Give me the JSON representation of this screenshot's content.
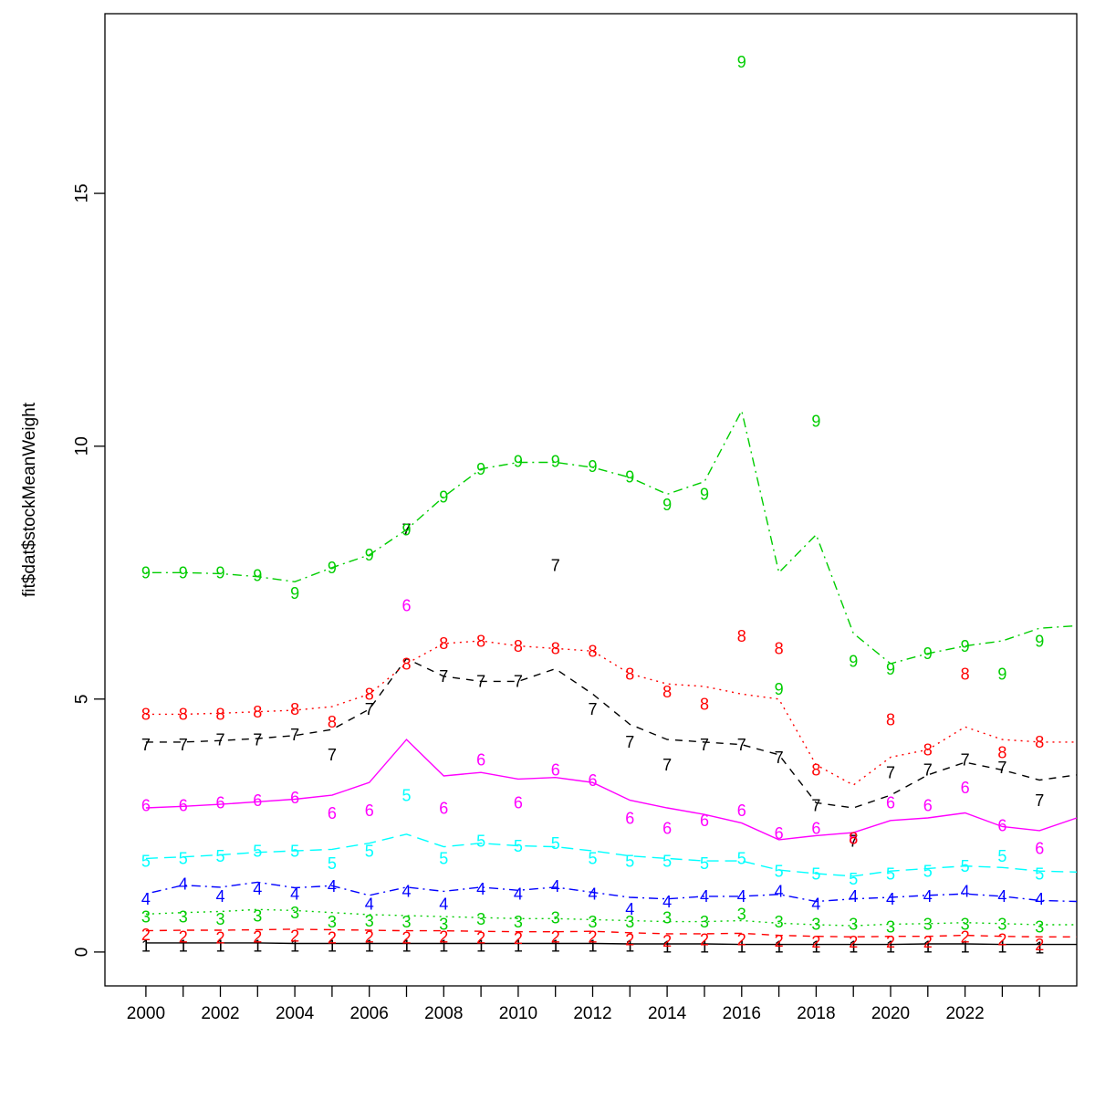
{
  "chart_data": {
    "type": "line",
    "title": "",
    "xlabel": "",
    "ylabel": "fit$dat$stockMeanWeight",
    "grid": false,
    "legend": "none",
    "xlim": [
      1998.9,
      2025.0
    ],
    "ylim": [
      -0.67,
      18.55
    ],
    "yticks": [
      0,
      5,
      10,
      15
    ],
    "xtick_years": [
      2000,
      2001,
      2002,
      2003,
      2004,
      2005,
      2006,
      2007,
      2008,
      2009,
      2010,
      2011,
      2012,
      2013,
      2014,
      2015,
      2016,
      2017,
      2018,
      2019,
      2020,
      2021,
      2022,
      2023,
      2024
    ],
    "xtick_labels": [
      2000,
      2002,
      2004,
      2006,
      2008,
      2010,
      2012,
      2014,
      2016,
      2018,
      2020,
      2022
    ],
    "years": [
      2000,
      2001,
      2002,
      2003,
      2004,
      2005,
      2006,
      2007,
      2008,
      2009,
      2010,
      2011,
      2012,
      2013,
      2014,
      2015,
      2016,
      2017,
      2018,
      2019,
      2020,
      2021,
      2022,
      2023,
      2024
    ],
    "fit_years": [
      2000,
      2001,
      2002,
      2003,
      2004,
      2005,
      2006,
      2007,
      2008,
      2009,
      2010,
      2011,
      2012,
      2013,
      2014,
      2015,
      2016,
      2017,
      2018,
      2019,
      2020,
      2021,
      2022,
      2023,
      2024,
      2025
    ],
    "series": [
      {
        "name": "age-1",
        "age": 1,
        "color": "#000000",
        "linestyle": "solid",
        "fit": [
          0.18,
          0.18,
          0.18,
          0.18,
          0.17,
          0.17,
          0.17,
          0.17,
          0.17,
          0.17,
          0.17,
          0.17,
          0.17,
          0.16,
          0.16,
          0.16,
          0.15,
          0.15,
          0.15,
          0.15,
          0.15,
          0.16,
          0.16,
          0.15,
          0.15,
          0.15
        ],
        "obs": [
          0.12,
          0.12,
          0.12,
          0.12,
          0.12,
          0.12,
          0.12,
          0.12,
          0.12,
          0.12,
          0.12,
          0.12,
          0.12,
          0.12,
          0.1,
          0.1,
          0.1,
          0.1,
          0.1,
          0.1,
          0.1,
          0.1,
          0.1,
          0.1,
          0.08
        ]
      },
      {
        "name": "age-2",
        "age": 2,
        "color": "#FF0000",
        "linestyle": "dashed",
        "fit": [
          0.42,
          0.43,
          0.43,
          0.44,
          0.45,
          0.44,
          0.43,
          0.42,
          0.42,
          0.41,
          0.4,
          0.4,
          0.41,
          0.38,
          0.36,
          0.36,
          0.37,
          0.33,
          0.31,
          0.3,
          0.31,
          0.31,
          0.33,
          0.31,
          0.3,
          0.3
        ],
        "obs": [
          0.35,
          0.3,
          0.28,
          0.3,
          0.32,
          0.28,
          0.3,
          0.28,
          0.3,
          0.28,
          0.27,
          0.3,
          0.3,
          0.25,
          0.22,
          0.25,
          0.25,
          0.22,
          0.2,
          0.2,
          0.2,
          0.2,
          0.3,
          0.25,
          0.15
        ]
      },
      {
        "name": "age-3",
        "age": 3,
        "color": "#00CD00",
        "linestyle": "dotted",
        "fit": [
          0.75,
          0.78,
          0.8,
          0.84,
          0.82,
          0.78,
          0.74,
          0.72,
          0.7,
          0.68,
          0.66,
          0.66,
          0.64,
          0.62,
          0.6,
          0.6,
          0.62,
          0.57,
          0.54,
          0.52,
          0.55,
          0.56,
          0.58,
          0.56,
          0.54,
          0.54
        ],
        "obs": [
          0.7,
          0.7,
          0.65,
          0.72,
          0.78,
          0.6,
          0.62,
          0.6,
          0.55,
          0.65,
          0.6,
          0.68,
          0.6,
          0.6,
          0.68,
          0.6,
          0.75,
          0.6,
          0.55,
          0.55,
          0.5,
          0.55,
          0.55,
          0.55,
          0.5
        ]
      },
      {
        "name": "age-4",
        "age": 4,
        "color": "#0000FF",
        "linestyle": "dotdash",
        "fit": [
          1.15,
          1.32,
          1.28,
          1.38,
          1.27,
          1.31,
          1.12,
          1.28,
          1.2,
          1.28,
          1.22,
          1.28,
          1.18,
          1.08,
          1.05,
          1.1,
          1.1,
          1.14,
          1.0,
          1.05,
          1.08,
          1.12,
          1.15,
          1.1,
          1.02,
          1.0
        ],
        "obs": [
          1.05,
          1.35,
          1.1,
          1.25,
          1.15,
          1.3,
          0.95,
          1.2,
          0.95,
          1.25,
          1.15,
          1.3,
          1.15,
          0.85,
          1.0,
          1.1,
          1.1,
          1.2,
          0.95,
          1.1,
          1.05,
          1.1,
          1.2,
          1.1,
          1.05
        ]
      },
      {
        "name": "age-5",
        "age": 5,
        "color": "#00FFFF",
        "linestyle": "longdash",
        "fit": [
          1.85,
          1.88,
          1.92,
          1.97,
          2.0,
          2.03,
          2.15,
          2.33,
          2.08,
          2.15,
          2.1,
          2.08,
          2.0,
          1.9,
          1.85,
          1.8,
          1.8,
          1.62,
          1.55,
          1.5,
          1.6,
          1.65,
          1.7,
          1.67,
          1.6,
          1.58
        ],
        "obs": [
          1.8,
          1.85,
          1.9,
          2.0,
          2.0,
          1.75,
          2.0,
          3.1,
          1.85,
          2.2,
          2.1,
          2.15,
          1.85,
          1.8,
          1.8,
          1.75,
          1.85,
          1.6,
          1.55,
          1.45,
          1.55,
          1.6,
          1.7,
          1.9,
          1.55
        ]
      },
      {
        "name": "age-6",
        "age": 6,
        "color": "#FF00FF",
        "linestyle": "solid",
        "fit": [
          2.85,
          2.88,
          2.92,
          2.97,
          3.02,
          3.1,
          3.35,
          4.2,
          3.48,
          3.55,
          3.42,
          3.45,
          3.35,
          3.0,
          2.85,
          2.72,
          2.55,
          2.22,
          2.3,
          2.36,
          2.6,
          2.65,
          2.75,
          2.48,
          2.4,
          2.65
        ],
        "obs": [
          2.9,
          2.9,
          2.95,
          3.0,
          3.05,
          2.75,
          2.8,
          6.85,
          2.85,
          3.8,
          2.95,
          3.6,
          3.4,
          2.65,
          2.45,
          2.6,
          2.8,
          2.35,
          2.45,
          2.25,
          2.95,
          2.9,
          3.25,
          2.5,
          2.05
        ]
      },
      {
        "name": "age-7",
        "age": 7,
        "color": "#000000",
        "linestyle": "dashed",
        "fit": [
          4.15,
          4.15,
          4.18,
          4.22,
          4.28,
          4.4,
          4.8,
          5.8,
          5.45,
          5.35,
          5.35,
          5.6,
          5.1,
          4.5,
          4.2,
          4.15,
          4.1,
          3.9,
          2.95,
          2.85,
          3.1,
          3.5,
          3.75,
          3.6,
          3.4,
          3.5
        ],
        "obs": [
          4.1,
          4.1,
          4.2,
          4.2,
          4.3,
          3.9,
          4.8,
          8.35,
          5.45,
          5.35,
          5.35,
          7.65,
          4.8,
          4.15,
          3.7,
          4.1,
          4.1,
          3.85,
          2.9,
          2.2,
          3.55,
          3.6,
          3.8,
          3.65,
          3.0
        ]
      },
      {
        "name": "age-8",
        "age": 8,
        "color": "#FF0000",
        "linestyle": "dotted",
        "fit": [
          4.7,
          4.7,
          4.72,
          4.75,
          4.78,
          4.85,
          5.1,
          5.7,
          6.1,
          6.15,
          6.05,
          6.0,
          5.95,
          5.5,
          5.3,
          5.25,
          5.1,
          5.0,
          3.7,
          3.3,
          3.85,
          4.0,
          4.45,
          4.2,
          4.15,
          4.15
        ],
        "obs": [
          4.7,
          4.7,
          4.7,
          4.75,
          4.8,
          4.55,
          5.1,
          5.7,
          6.1,
          6.15,
          6.05,
          6.0,
          5.95,
          5.5,
          5.15,
          4.9,
          6.25,
          6.0,
          3.6,
          2.25,
          4.6,
          4.0,
          5.5,
          3.95,
          4.15
        ]
      },
      {
        "name": "age-9",
        "age": 9,
        "color": "#00CD00",
        "linestyle": "dotdash",
        "fit": [
          7.5,
          7.5,
          7.48,
          7.42,
          7.32,
          7.6,
          7.85,
          8.35,
          9.0,
          9.55,
          9.68,
          9.68,
          9.58,
          9.38,
          9.05,
          9.3,
          10.7,
          7.5,
          8.25,
          6.3,
          5.7,
          5.9,
          6.05,
          6.15,
          6.4,
          6.45
        ],
        "obs": [
          7.5,
          7.5,
          7.5,
          7.45,
          7.1,
          7.6,
          7.85,
          8.35,
          9.0,
          9.55,
          9.7,
          9.7,
          9.6,
          9.4,
          8.85,
          9.05,
          17.6,
          5.2,
          10.5,
          5.75,
          5.6,
          5.9,
          6.05,
          5.5,
          6.15
        ]
      }
    ]
  }
}
